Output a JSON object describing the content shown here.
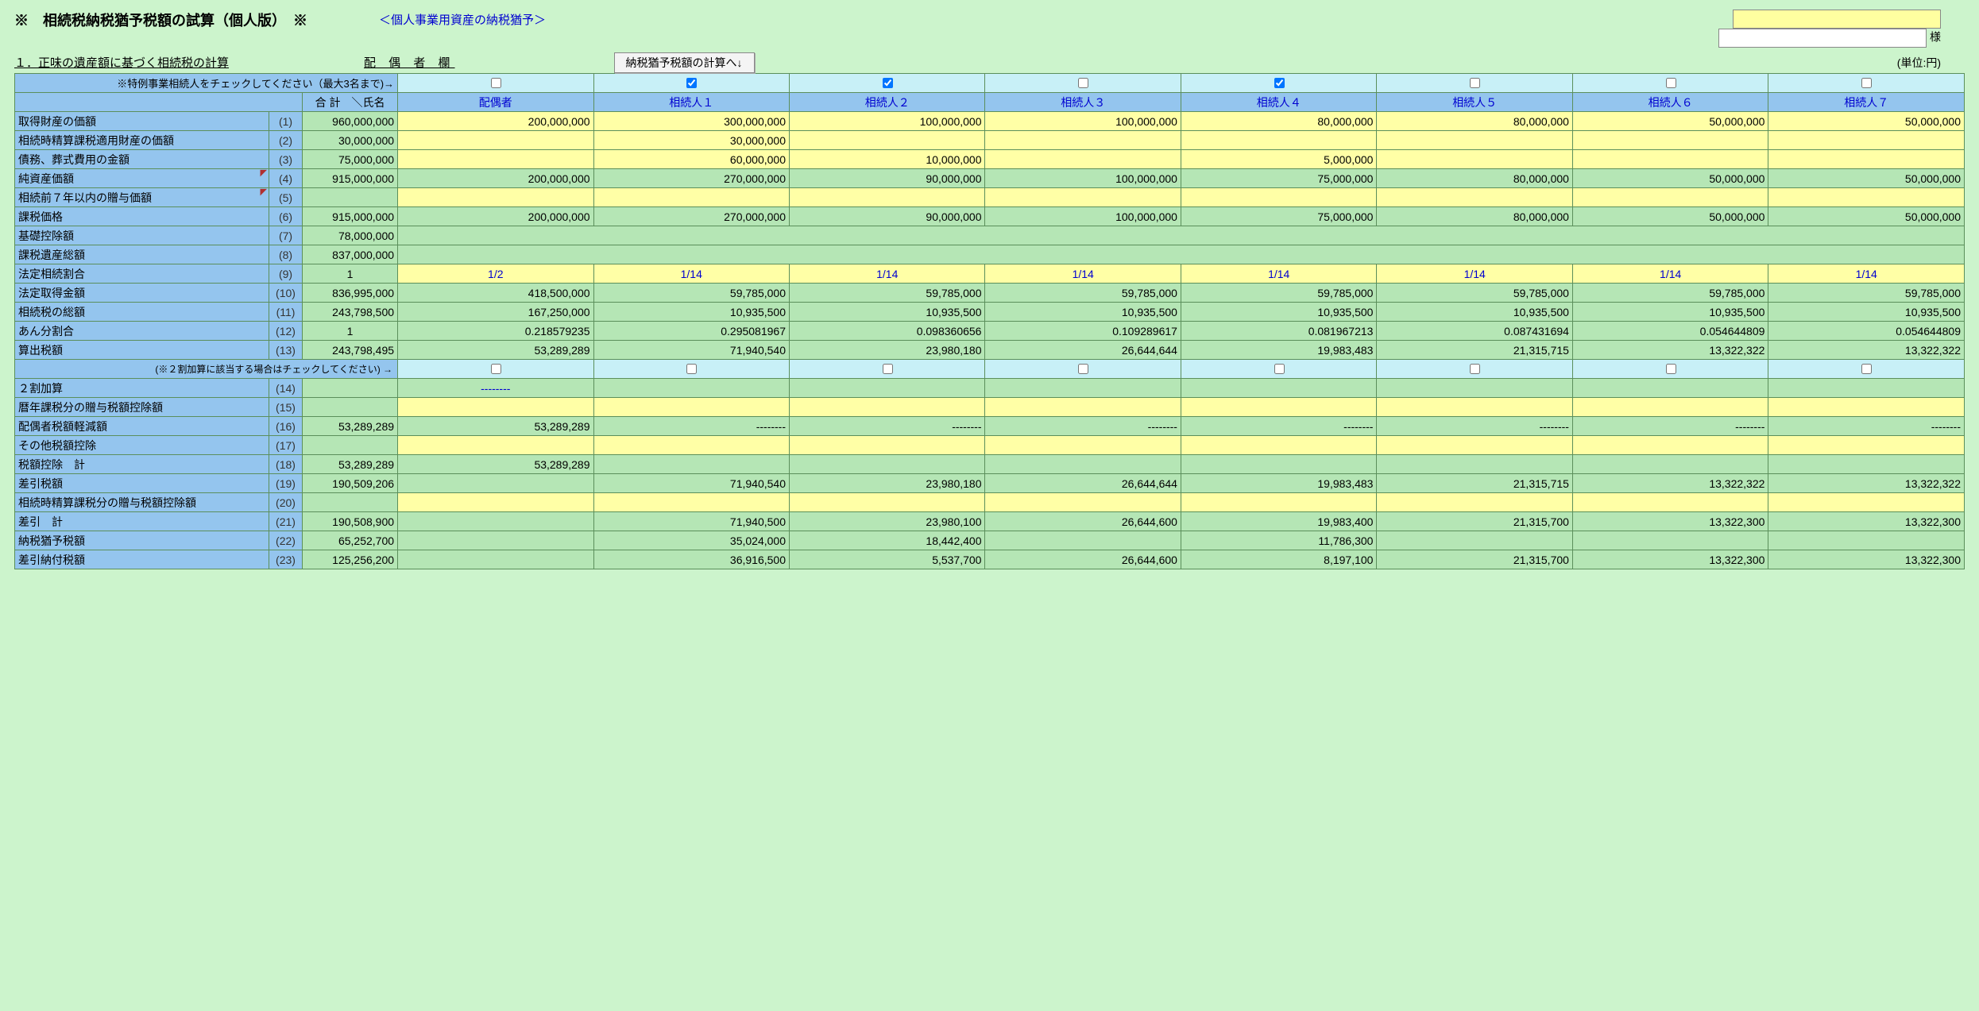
{
  "page_title": "※　相続税納税猶予税額の試算（個人版）　※",
  "sub_title": "＜個人事業用資産の納税猶予＞",
  "sama": "様",
  "section1": "１．正味の遺産額に基づく相続税の計算",
  "spouse_col": "配 偶 者 欄",
  "calc_button": "納税猶予税額の計算へ↓",
  "unit": "(単位:円)",
  "check_note": "※特例事業相続人をチェックしてください（最大3名まで)→",
  "total_name_header": "合 計　＼氏名",
  "heirs": [
    "配偶者",
    "相続人１",
    "相続人２",
    "相続人３",
    "相続人４",
    "相続人５",
    "相続人６",
    "相続人７"
  ],
  "checks": [
    false,
    true,
    true,
    false,
    true,
    false,
    false,
    false
  ],
  "rows": [
    {
      "id": 1,
      "label": "取得財産の価額",
      "total": "960,000,000",
      "style": "y",
      "cells": [
        "200,000,000",
        "300,000,000",
        "100,000,000",
        "100,000,000",
        "80,000,000",
        "80,000,000",
        "50,000,000",
        "50,000,000"
      ]
    },
    {
      "id": 2,
      "label": "相続時精算課税適用財産の価額",
      "total": "30,000,000",
      "style": "y",
      "cells": [
        "",
        "30,000,000",
        "",
        "",
        "",
        "",
        "",
        ""
      ]
    },
    {
      "id": 3,
      "label": "債務、葬式費用の金額",
      "total": "75,000,000",
      "style": "y",
      "cells": [
        "",
        "60,000,000",
        "10,000,000",
        "",
        "5,000,000",
        "",
        "",
        ""
      ]
    },
    {
      "id": 4,
      "label": "純資産価額",
      "mark": true,
      "total": "915,000,000",
      "style": "g",
      "cells": [
        "200,000,000",
        "270,000,000",
        "90,000,000",
        "100,000,000",
        "75,000,000",
        "80,000,000",
        "50,000,000",
        "50,000,000"
      ]
    },
    {
      "id": 5,
      "label": "相続前７年以内の贈与価額",
      "mark": true,
      "total": "",
      "style": "y",
      "cells": [
        "",
        "",
        "",
        "",
        "",
        "",
        "",
        ""
      ]
    },
    {
      "id": 6,
      "label": "課税価格",
      "total": "915,000,000",
      "style": "g",
      "cells": [
        "200,000,000",
        "270,000,000",
        "90,000,000",
        "100,000,000",
        "75,000,000",
        "80,000,000",
        "50,000,000",
        "50,000,000"
      ]
    },
    {
      "id": 7,
      "label": "基礎控除額",
      "total": "78,000,000",
      "style": "blank",
      "cells": [
        "",
        "",
        "",
        "",
        "",
        "",
        "",
        ""
      ]
    },
    {
      "id": 8,
      "label": "課税遺産総額",
      "total": "837,000,000",
      "style": "blank",
      "cells": [
        "",
        "",
        "",
        "",
        "",
        "",
        "",
        ""
      ]
    },
    {
      "id": 9,
      "label": "法定相続割合",
      "total": "1",
      "total_c": true,
      "style": "yc",
      "cells": [
        "1/2",
        "1/14",
        "1/14",
        "1/14",
        "1/14",
        "1/14",
        "1/14",
        "1/14"
      ]
    },
    {
      "id": 10,
      "label": "法定取得金額",
      "total": "836,995,000",
      "style": "g",
      "cells": [
        "418,500,000",
        "59,785,000",
        "59,785,000",
        "59,785,000",
        "59,785,000",
        "59,785,000",
        "59,785,000",
        "59,785,000"
      ]
    },
    {
      "id": 11,
      "label": "相続税の総額",
      "total": "243,798,500",
      "style": "g",
      "cells": [
        "167,250,000",
        "10,935,500",
        "10,935,500",
        "10,935,500",
        "10,935,500",
        "10,935,500",
        "10,935,500",
        "10,935,500"
      ]
    },
    {
      "id": 12,
      "label": "あん分割合",
      "total": "1",
      "total_c": true,
      "style": "g",
      "cells": [
        "0.218579235",
        "0.295081967",
        "0.098360656",
        "0.109289617",
        "0.081967213",
        "0.087431694",
        "0.054644809",
        "0.054644809"
      ]
    },
    {
      "id": 13,
      "label": "算出税額",
      "total": "243,798,495",
      "style": "g",
      "cells": [
        "53,289,289",
        "71,940,540",
        "23,980,180",
        "26,644,644",
        "19,983,483",
        "21,315,715",
        "13,322,322",
        "13,322,322"
      ]
    }
  ],
  "check2_note": "(※２割加算に該当する場合はチェックしてください)  →",
  "rows2": [
    {
      "id": 14,
      "label": "２割加算",
      "total": "",
      "style": "gc",
      "cells": [
        "--------",
        "",
        "",
        "",
        "",
        "",
        "",
        ""
      ]
    },
    {
      "id": 15,
      "label": "暦年課税分の贈与税額控除額",
      "total": "",
      "style": "y",
      "cells": [
        "",
        "",
        "",
        "",
        "",
        "",
        "",
        ""
      ]
    },
    {
      "id": 16,
      "label": "配偶者税額軽減額",
      "total": "53,289,289",
      "style": "g",
      "cells": [
        "53,289,289",
        "--------",
        "--------",
        "--------",
        "--------",
        "--------",
        "--------",
        "--------"
      ]
    },
    {
      "id": 17,
      "label": "その他税額控除",
      "total": "",
      "style": "y",
      "cells": [
        "",
        "",
        "",
        "",
        "",
        "",
        "",
        ""
      ]
    },
    {
      "id": 18,
      "label": "税額控除　計",
      "total": "53,289,289",
      "style": "g",
      "cells": [
        "53,289,289",
        "",
        "",
        "",
        "",
        "",
        "",
        ""
      ]
    },
    {
      "id": 19,
      "label": "差引税額",
      "total": "190,509,206",
      "style": "g",
      "cells": [
        "",
        "71,940,540",
        "23,980,180",
        "26,644,644",
        "19,983,483",
        "21,315,715",
        "13,322,322",
        "13,322,322"
      ]
    },
    {
      "id": 20,
      "label": "相続時精算課税分の贈与税額控除額",
      "total": "",
      "style": "y",
      "cells": [
        "",
        "",
        "",
        "",
        "",
        "",
        "",
        ""
      ]
    },
    {
      "id": 21,
      "label": "差引　計",
      "total": "190,508,900",
      "style": "g",
      "cells": [
        "",
        "71,940,500",
        "23,980,100",
        "26,644,600",
        "19,983,400",
        "21,315,700",
        "13,322,300",
        "13,322,300"
      ]
    },
    {
      "id": 22,
      "label": "納税猶予税額",
      "total": "65,252,700",
      "style": "g",
      "cells": [
        "",
        "35,024,000",
        "18,442,400",
        "",
        "11,786,300",
        "",
        "",
        ""
      ]
    },
    {
      "id": 23,
      "label": "差引納付税額",
      "total": "125,256,200",
      "style": "g",
      "cells": [
        "",
        "36,916,500",
        "5,537,700",
        "26,644,600",
        "8,197,100",
        "21,315,700",
        "13,322,300",
        "13,322,300"
      ]
    }
  ],
  "colors": {
    "page_bg": "#ccf4cc",
    "header_blue": "#94c5ee",
    "cell_green": "#b5e6b5",
    "cell_yellow": "#ffffa6",
    "cell_cyan": "#c8f0f7",
    "border": "#5b8f5b",
    "link_blue": "#0000d0"
  }
}
